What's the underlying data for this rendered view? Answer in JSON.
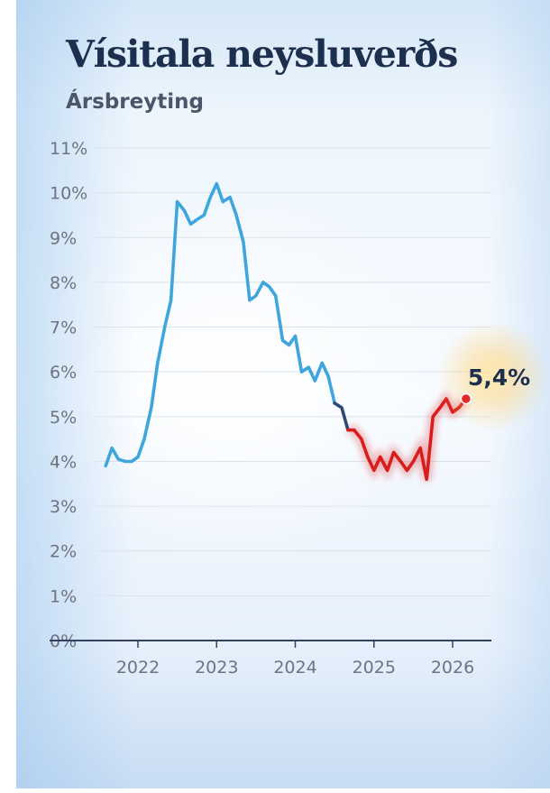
{
  "title": "Vísitala neysluverðs",
  "subtitle": "Ársbreyting",
  "colors": {
    "rising": "#3fa6dc",
    "transition": "#2d4a74",
    "falling": "#d91c1c",
    "marker": "#e32a2a",
    "text": "#1d2f4e"
  },
  "chart_data": {
    "type": "line",
    "title": "Vísitala neysluverðs",
    "subtitle": "Ársbreyting",
    "xlabel": "",
    "ylabel": "",
    "ylim": [
      0,
      11
    ],
    "xlim": [
      2020.8,
      2026.5
    ],
    "y_ticks": [
      0,
      1,
      2,
      3,
      4,
      5,
      6,
      7,
      8,
      9,
      10,
      11
    ],
    "y_tick_labels": [
      "0%",
      "1%",
      "2%",
      "3%",
      "4%",
      "5%",
      "6%",
      "7%",
      "8%",
      "9%",
      "10%",
      "11%"
    ],
    "x_ticks": [
      2022,
      2023,
      2024,
      2025,
      2026
    ],
    "x_tick_labels": [
      "2022",
      "2023",
      "2024",
      "2025",
      "2026"
    ],
    "grid": true,
    "series": [
      {
        "name": "Ársbreyting",
        "x": [
          2021.59,
          2021.67,
          2021.75,
          2021.84,
          2021.92,
          2022.0,
          2022.08,
          2022.17,
          2022.25,
          2022.34,
          2022.42,
          2022.5,
          2022.59,
          2022.67,
          2022.75,
          2022.84,
          2022.92,
          2023.0,
          2023.08,
          2023.17,
          2023.25,
          2023.34,
          2023.42,
          2023.5,
          2023.59,
          2023.67,
          2023.75,
          2023.84,
          2023.92,
          2024.0,
          2024.08,
          2024.17,
          2024.25,
          2024.34,
          2024.42,
          2024.5,
          2024.59,
          2024.67,
          2024.75,
          2024.84,
          2024.92,
          2025.0,
          2025.08,
          2025.17,
          2025.25,
          2025.34,
          2025.42,
          2025.5,
          2025.59,
          2025.67,
          2025.75,
          2025.84,
          2025.92,
          2026.0,
          2026.08,
          2026.17
        ],
        "y": [
          3.9,
          4.3,
          4.05,
          4.0,
          4.0,
          4.1,
          4.5,
          5.2,
          6.2,
          7.0,
          7.6,
          9.8,
          9.6,
          9.3,
          9.4,
          9.5,
          9.9,
          10.2,
          9.8,
          9.9,
          9.5,
          8.9,
          7.6,
          7.7,
          8.0,
          7.9,
          7.7,
          6.7,
          6.6,
          6.8,
          6.0,
          6.1,
          5.8,
          6.2,
          5.9,
          5.3,
          5.2,
          4.7,
          4.7,
          4.5,
          4.1,
          3.8,
          4.1,
          3.8,
          4.2,
          4.0,
          3.8,
          4.0,
          4.3,
          3.6,
          5.0,
          5.2,
          5.4,
          5.1,
          5.2,
          5.4
        ],
        "rising_segment_end_index": 35,
        "transition_segment_end_index": 37
      }
    ],
    "annotations": [
      {
        "label": "5,4%",
        "x": 2026.17,
        "y": 5.4
      }
    ]
  }
}
